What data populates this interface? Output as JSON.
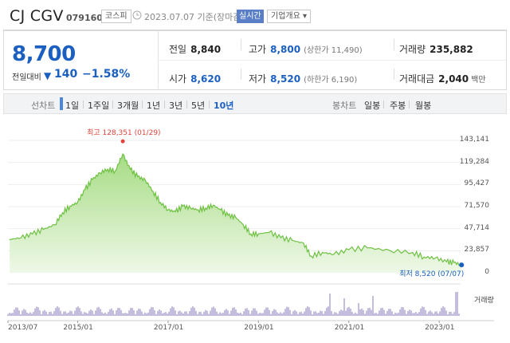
{
  "header": {
    "name": "CJ CGV",
    "code": "079160",
    "market_badge": "코스피",
    "date_text": "2023.07.07 기준(장마감)",
    "realtime_badge": "실시간",
    "company_info": "기업개요 ▾"
  },
  "summary": {
    "price": "8,700",
    "change_label": "전일대비",
    "change_arrow": "▼",
    "change_value": "140",
    "change_pct": "−1.58%",
    "prev_close": {
      "label": "전일",
      "value": "8,840"
    },
    "open": {
      "label": "시가",
      "value": "8,620"
    },
    "high": {
      "label": "고가",
      "value": "8,800",
      "sub": "(상한가 11,490)"
    },
    "low": {
      "label": "저가",
      "value": "8,520",
      "sub": "(하한가 6,190)"
    },
    "volume": {
      "label": "거래량",
      "value": "235,882"
    },
    "amount": {
      "label": "거래대금",
      "value": "2,040",
      "unit": "백만"
    }
  },
  "tabs": {
    "line_label": "선차트",
    "periods": [
      "1일",
      "1주일",
      "3개월",
      "1년",
      "3년",
      "5년",
      "10년"
    ],
    "selected_period": "10년",
    "candle_label": "봉차트",
    "candles": [
      "일봉",
      "주봉",
      "월봉"
    ]
  },
  "chart_data": {
    "type": "area",
    "y_ticks": [
      "143,141",
      "119,284",
      "95,427",
      "71,570",
      "47,714",
      "23,857",
      "0"
    ],
    "ylim": [
      0,
      143141
    ],
    "x_ticks": [
      "2013/07",
      "2015/01",
      "2017/01",
      "2019/01",
      "2021/01",
      "2023/01"
    ],
    "annotations": {
      "max": "최고 128,351 (01/29)",
      "min": "최저 8,520 (07/07)"
    },
    "volume_label": "거래량",
    "series": [
      {
        "values": [
          {
            "x": "2013-07",
            "y": 36000
          },
          {
            "x": "2013-10",
            "y": 38000
          },
          {
            "x": "2014-01",
            "y": 42000
          },
          {
            "x": "2014-04",
            "y": 47000
          },
          {
            "x": "2014-07",
            "y": 52000
          },
          {
            "x": "2014-09",
            "y": 65000
          },
          {
            "x": "2014-11",
            "y": 72000
          },
          {
            "x": "2015-01",
            "y": 76000
          },
          {
            "x": "2015-03",
            "y": 90000
          },
          {
            "x": "2015-05",
            "y": 101000
          },
          {
            "x": "2015-07",
            "y": 108000
          },
          {
            "x": "2015-09",
            "y": 112000
          },
          {
            "x": "2015-11",
            "y": 110000
          },
          {
            "x": "2016-01",
            "y": 128351
          },
          {
            "x": "2016-03",
            "y": 112000
          },
          {
            "x": "2016-05",
            "y": 104000
          },
          {
            "x": "2016-07",
            "y": 100000
          },
          {
            "x": "2016-09",
            "y": 88000
          },
          {
            "x": "2016-11",
            "y": 76000
          },
          {
            "x": "2017-01",
            "y": 68000
          },
          {
            "x": "2017-03",
            "y": 66000
          },
          {
            "x": "2017-05",
            "y": 72000
          },
          {
            "x": "2017-07",
            "y": 70000
          },
          {
            "x": "2017-09",
            "y": 68000
          },
          {
            "x": "2017-11",
            "y": 70000
          },
          {
            "x": "2018-01",
            "y": 73000
          },
          {
            "x": "2018-03",
            "y": 68000
          },
          {
            "x": "2018-05",
            "y": 62000
          },
          {
            "x": "2018-07",
            "y": 60000
          },
          {
            "x": "2018-09",
            "y": 52000
          },
          {
            "x": "2018-11",
            "y": 42000
          },
          {
            "x": "2019-01",
            "y": 42000
          },
          {
            "x": "2019-04",
            "y": 44000
          },
          {
            "x": "2019-07",
            "y": 38000
          },
          {
            "x": "2019-10",
            "y": 35000
          },
          {
            "x": "2020-01",
            "y": 32000
          },
          {
            "x": "2020-03",
            "y": 18000
          },
          {
            "x": "2020-06",
            "y": 22000
          },
          {
            "x": "2020-09",
            "y": 20000
          },
          {
            "x": "2021-01",
            "y": 25000
          },
          {
            "x": "2021-06",
            "y": 27000
          },
          {
            "x": "2021-12",
            "y": 24000
          },
          {
            "x": "2022-06",
            "y": 22000
          },
          {
            "x": "2022-09",
            "y": 17000
          },
          {
            "x": "2022-12",
            "y": 16000
          },
          {
            "x": "2023-03",
            "y": 12000
          },
          {
            "x": "2023-05",
            "y": 11000
          },
          {
            "x": "2023-07",
            "y": 8520
          }
        ]
      }
    ],
    "colors": {
      "line": "#6fc143",
      "fill_top": "#a6dc84",
      "fill_bottom": "#eef8e7",
      "volume": "#8a7bbd"
    }
  }
}
